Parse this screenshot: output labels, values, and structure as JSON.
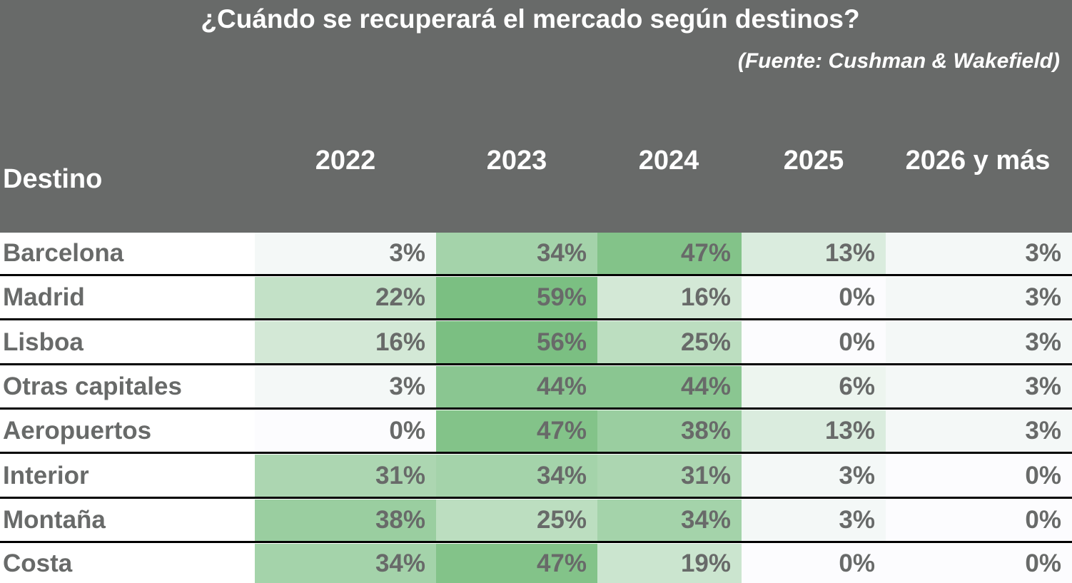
{
  "chart_data": {
    "type": "table",
    "title": "¿Cuándo se recuperará el mercado según destinos?",
    "subtitle": "(Fuente: Cushman & Wakefield)",
    "row_header": "Destino",
    "columns": [
      "2022",
      "2023",
      "2024",
      "2025",
      "2026 y más"
    ],
    "rows": [
      {
        "name": "Barcelona",
        "values": [
          3,
          34,
          47,
          13,
          3
        ]
      },
      {
        "name": "Madrid",
        "values": [
          22,
          59,
          16,
          0,
          3
        ]
      },
      {
        "name": "Lisboa",
        "values": [
          16,
          56,
          25,
          0,
          3
        ]
      },
      {
        "name": "Otras capitales",
        "values": [
          3,
          44,
          44,
          6,
          3
        ]
      },
      {
        "name": "Aeropuertos",
        "values": [
          0,
          47,
          38,
          13,
          3
        ]
      },
      {
        "name": "Interior",
        "values": [
          31,
          34,
          31,
          3,
          0
        ]
      },
      {
        "name": "Montaña",
        "values": [
          38,
          25,
          34,
          3,
          0
        ]
      },
      {
        "name": "Costa",
        "values": [
          34,
          47,
          19,
          0,
          0
        ]
      }
    ],
    "value_suffix": "%",
    "colors": {
      "header_bg": "#686a69",
      "header_text": "#ffffff",
      "body_text": "#686a69",
      "heat_low": "#fcfcfe",
      "heat_high": "#7bbf82",
      "row_separator": "#000000"
    }
  }
}
